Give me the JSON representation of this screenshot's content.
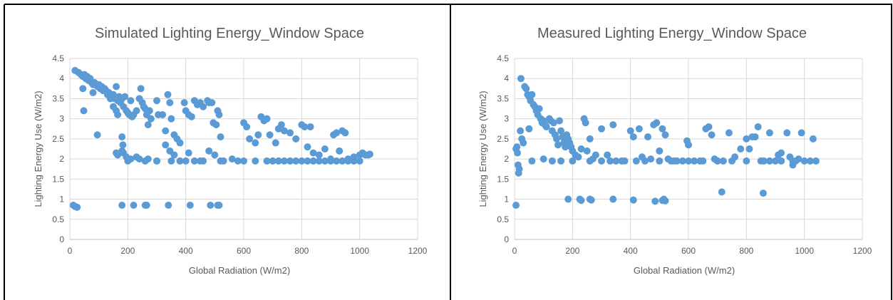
{
  "chart_data": [
    {
      "type": "scatter",
      "title": "Simulated Lighting Energy_Window Space",
      "xlabel": "Global Radiation (W/m2)",
      "ylabel": "Lighting Energy Use (W/m2)",
      "xlim": [
        0,
        1200
      ],
      "ylim": [
        0,
        4.5
      ],
      "x_ticks": [
        "0",
        "200",
        "400",
        "600",
        "800",
        "1000",
        "1200"
      ],
      "y_ticks": [
        "0",
        "0.5",
        "1",
        "1.5",
        "2",
        "2.5",
        "3",
        "3.5",
        "4",
        "4.5"
      ],
      "grid": true,
      "color": "#5b9bd5",
      "points": [
        [
          18,
          4.2
        ],
        [
          30,
          4.15
        ],
        [
          38,
          4.1
        ],
        [
          45,
          4.05
        ],
        [
          50,
          4.1
        ],
        [
          55,
          4.0
        ],
        [
          60,
          4.05
        ],
        [
          65,
          3.95
        ],
        [
          70,
          4.0
        ],
        [
          75,
          3.9
        ],
        [
          80,
          3.85
        ],
        [
          85,
          3.9
        ],
        [
          95,
          3.8
        ],
        [
          100,
          3.85
        ],
        [
          105,
          3.75
        ],
        [
          110,
          3.8
        ],
        [
          115,
          3.7
        ],
        [
          120,
          3.75
        ],
        [
          125,
          3.7
        ],
        [
          130,
          3.6
        ],
        [
          135,
          3.65
        ],
        [
          140,
          3.5
        ],
        [
          145,
          3.55
        ],
        [
          150,
          3.6
        ],
        [
          155,
          3.5
        ],
        [
          160,
          3.8
        ],
        [
          165,
          3.45
        ],
        [
          170,
          3.55
        ],
        [
          175,
          3.4
        ],
        [
          180,
          3.5
        ],
        [
          185,
          3.3
        ],
        [
          190,
          3.55
        ],
        [
          195,
          3.2
        ],
        [
          200,
          3.15
        ],
        [
          205,
          3.1
        ],
        [
          210,
          3.45
        ],
        [
          215,
          3.05
        ],
        [
          220,
          3.1
        ],
        [
          230,
          3.2
        ],
        [
          240,
          3.5
        ],
        [
          245,
          3.75
        ],
        [
          250,
          3.4
        ],
        [
          255,
          3.3
        ],
        [
          260,
          3.25
        ],
        [
          265,
          3.1
        ],
        [
          270,
          2.85
        ],
        [
          275,
          3.2
        ],
        [
          280,
          3.0
        ],
        [
          300,
          3.45
        ],
        [
          305,
          3.1
        ],
        [
          320,
          3.1
        ],
        [
          330,
          2.7
        ],
        [
          338,
          3.6
        ],
        [
          345,
          3.4
        ],
        [
          350,
          3.0
        ],
        [
          360,
          2.6
        ],
        [
          370,
          2.5
        ],
        [
          380,
          2.4
        ],
        [
          395,
          3.4
        ],
        [
          400,
          3.2
        ],
        [
          410,
          3.1
        ],
        [
          420,
          3.05
        ],
        [
          430,
          3.45
        ],
        [
          440,
          3.35
        ],
        [
          450,
          3.4
        ],
        [
          460,
          3.3
        ],
        [
          475,
          3.45
        ],
        [
          480,
          3.4
        ],
        [
          490,
          3.4
        ],
        [
          495,
          2.9
        ],
        [
          505,
          2.85
        ],
        [
          510,
          3.2
        ],
        [
          515,
          3.1
        ],
        [
          520,
          2.55
        ],
        [
          48,
          3.2
        ],
        [
          45,
          3.75
        ],
        [
          80,
          3.65
        ],
        [
          95,
          2.6
        ],
        [
          150,
          3.3
        ],
        [
          160,
          3.2
        ],
        [
          165,
          3.1
        ],
        [
          180,
          2.55
        ],
        [
          183,
          2.35
        ],
        [
          180,
          2.2
        ],
        [
          160,
          2.15
        ],
        [
          165,
          2.1
        ],
        [
          185,
          2.15
        ],
        [
          195,
          2.05
        ],
        [
          210,
          2.0
        ],
        [
          230,
          2.05
        ],
        [
          240,
          2.0
        ],
        [
          260,
          1.95
        ],
        [
          270,
          2.0
        ],
        [
          300,
          1.95
        ],
        [
          330,
          2.35
        ],
        [
          345,
          2.2
        ],
        [
          360,
          2.1
        ],
        [
          380,
          1.95
        ],
        [
          410,
          2.15
        ],
        [
          430,
          1.95
        ],
        [
          460,
          1.95
        ],
        [
          480,
          2.2
        ],
        [
          500,
          2.1
        ],
        [
          530,
          1.95
        ],
        [
          560,
          2.0
        ],
        [
          580,
          1.95
        ],
        [
          600,
          2.9
        ],
        [
          610,
          2.8
        ],
        [
          620,
          2.5
        ],
        [
          640,
          2.4
        ],
        [
          650,
          2.6
        ],
        [
          660,
          3.05
        ],
        [
          670,
          2.95
        ],
        [
          680,
          3.0
        ],
        [
          690,
          2.6
        ],
        [
          710,
          2.4
        ],
        [
          720,
          2.75
        ],
        [
          730,
          2.85
        ],
        [
          740,
          2.7
        ],
        [
          760,
          2.65
        ],
        [
          780,
          2.5
        ],
        [
          800,
          2.85
        ],
        [
          810,
          2.8
        ],
        [
          820,
          2.3
        ],
        [
          830,
          2.8
        ],
        [
          840,
          2.15
        ],
        [
          860,
          2.1
        ],
        [
          880,
          2.25
        ],
        [
          900,
          2.0
        ],
        [
          910,
          2.6
        ],
        [
          920,
          2.65
        ],
        [
          930,
          2.2
        ],
        [
          940,
          2.7
        ],
        [
          950,
          2.65
        ],
        [
          960,
          2.0
        ],
        [
          980,
          2.05
        ],
        [
          1000,
          2.1
        ],
        [
          1010,
          2.15
        ],
        [
          1020,
          2.1
        ],
        [
          1030,
          2.1
        ],
        [
          1035,
          2.12
        ],
        [
          200,
          1.95
        ],
        [
          300,
          1.95
        ],
        [
          350,
          1.95
        ],
        [
          400,
          1.95
        ],
        [
          450,
          1.95
        ],
        [
          520,
          1.95
        ],
        [
          600,
          1.95
        ],
        [
          640,
          1.95
        ],
        [
          680,
          1.95
        ],
        [
          700,
          1.95
        ],
        [
          720,
          1.95
        ],
        [
          740,
          1.95
        ],
        [
          760,
          1.95
        ],
        [
          780,
          1.95
        ],
        [
          800,
          1.95
        ],
        [
          820,
          1.95
        ],
        [
          840,
          1.95
        ],
        [
          860,
          1.95
        ],
        [
          880,
          1.95
        ],
        [
          900,
          1.95
        ],
        [
          920,
          1.95
        ],
        [
          940,
          1.95
        ],
        [
          960,
          1.95
        ],
        [
          980,
          1.95
        ],
        [
          1000,
          1.95
        ],
        [
          12,
          0.85
        ],
        [
          18,
          0.82
        ],
        [
          25,
          0.8
        ],
        [
          180,
          0.85
        ],
        [
          220,
          0.85
        ],
        [
          260,
          0.85
        ],
        [
          265,
          0.85
        ],
        [
          340,
          0.85
        ],
        [
          415,
          0.85
        ],
        [
          485,
          0.85
        ],
        [
          510,
          0.85
        ],
        [
          515,
          0.85
        ]
      ]
    },
    {
      "type": "scatter",
      "title": "Measured Lighting Energy_Window Space",
      "xlabel": "Global Radiation (W/m2)",
      "ylabel": "Lighting Energy Use (W/m2)",
      "xlim": [
        0,
        1200
      ],
      "ylim": [
        0,
        4.5
      ],
      "x_ticks": [
        "0",
        "200",
        "400",
        "600",
        "800",
        "1000",
        "1200"
      ],
      "y_ticks": [
        "0",
        "0.5",
        "1",
        "1.5",
        "2",
        "2.5",
        "3",
        "3.5",
        "4",
        "4.5"
      ],
      "grid": true,
      "color": "#5b9bd5",
      "points": [
        [
          5,
          2.25
        ],
        [
          8,
          2.3
        ],
        [
          10,
          2.15
        ],
        [
          12,
          1.85
        ],
        [
          14,
          1.65
        ],
        [
          16,
          1.75
        ],
        [
          20,
          2.7
        ],
        [
          25,
          2.5
        ],
        [
          30,
          2.4
        ],
        [
          22,
          4.0
        ],
        [
          35,
          3.8
        ],
        [
          40,
          3.75
        ],
        [
          45,
          3.6
        ],
        [
          50,
          3.55
        ],
        [
          55,
          3.45
        ],
        [
          60,
          3.6
        ],
        [
          65,
          3.35
        ],
        [
          70,
          3.3
        ],
        [
          75,
          3.2
        ],
        [
          80,
          3.1
        ],
        [
          85,
          3.25
        ],
        [
          90,
          3.0
        ],
        [
          95,
          2.9
        ],
        [
          100,
          2.95
        ],
        [
          105,
          2.85
        ],
        [
          110,
          2.8
        ],
        [
          120,
          3.0
        ],
        [
          125,
          2.95
        ],
        [
          130,
          2.7
        ],
        [
          135,
          2.9
        ],
        [
          140,
          2.6
        ],
        [
          145,
          2.5
        ],
        [
          150,
          2.35
        ],
        [
          155,
          2.95
        ],
        [
          160,
          2.7
        ],
        [
          165,
          2.55
        ],
        [
          170,
          2.4
        ],
        [
          175,
          2.3
        ],
        [
          180,
          2.6
        ],
        [
          185,
          2.5
        ],
        [
          190,
          2.4
        ],
        [
          195,
          2.3
        ],
        [
          200,
          2.2
        ],
        [
          210,
          2.1
        ],
        [
          220,
          2.05
        ],
        [
          230,
          2.25
        ],
        [
          240,
          3.0
        ],
        [
          245,
          2.9
        ],
        [
          250,
          2.2
        ],
        [
          260,
          2.5
        ],
        [
          270,
          2.0
        ],
        [
          280,
          2.1
        ],
        [
          300,
          2.75
        ],
        [
          320,
          2.1
        ],
        [
          340,
          2.85
        ],
        [
          350,
          1.95
        ],
        [
          370,
          1.95
        ],
        [
          400,
          2.7
        ],
        [
          410,
          2.55
        ],
        [
          420,
          1.95
        ],
        [
          430,
          2.75
        ],
        [
          440,
          2.05
        ],
        [
          460,
          2.55
        ],
        [
          470,
          2.0
        ],
        [
          480,
          2.85
        ],
        [
          490,
          2.9
        ],
        [
          500,
          2.2
        ],
        [
          510,
          2.75
        ],
        [
          520,
          2.6
        ],
        [
          530,
          2.0
        ],
        [
          540,
          1.95
        ],
        [
          560,
          1.95
        ],
        [
          580,
          1.95
        ],
        [
          595,
          2.45
        ],
        [
          600,
          2.35
        ],
        [
          620,
          1.95
        ],
        [
          640,
          1.95
        ],
        [
          660,
          2.75
        ],
        [
          670,
          2.8
        ],
        [
          680,
          2.6
        ],
        [
          690,
          2.0
        ],
        [
          700,
          1.95
        ],
        [
          720,
          1.95
        ],
        [
          740,
          2.65
        ],
        [
          760,
          2.05
        ],
        [
          780,
          2.25
        ],
        [
          800,
          2.5
        ],
        [
          810,
          2.25
        ],
        [
          820,
          2.55
        ],
        [
          830,
          2.55
        ],
        [
          840,
          2.8
        ],
        [
          860,
          1.95
        ],
        [
          880,
          2.65
        ],
        [
          900,
          1.95
        ],
        [
          910,
          2.1
        ],
        [
          920,
          2.15
        ],
        [
          940,
          2.65
        ],
        [
          950,
          2.05
        ],
        [
          960,
          1.85
        ],
        [
          970,
          1.95
        ],
        [
          980,
          2.0
        ],
        [
          990,
          2.65
        ],
        [
          1000,
          1.95
        ],
        [
          1020,
          1.95
        ],
        [
          1030,
          2.5
        ],
        [
          1040,
          1.95
        ],
        [
          50,
          2.75
        ],
        [
          60,
          1.95
        ],
        [
          100,
          2.0
        ],
        [
          130,
          1.95
        ],
        [
          160,
          1.95
        ],
        [
          200,
          1.95
        ],
        [
          260,
          1.95
        ],
        [
          300,
          1.95
        ],
        [
          330,
          1.95
        ],
        [
          380,
          1.95
        ],
        [
          450,
          1.95
        ],
        [
          500,
          1.95
        ],
        [
          550,
          1.95
        ],
        [
          600,
          1.95
        ],
        [
          650,
          1.95
        ],
        [
          700,
          1.95
        ],
        [
          750,
          1.95
        ],
        [
          800,
          1.95
        ],
        [
          850,
          1.95
        ],
        [
          880,
          1.95
        ],
        [
          920,
          1.95
        ],
        [
          960,
          1.95
        ],
        [
          5,
          0.85
        ],
        [
          185,
          1.0
        ],
        [
          225,
          1.0
        ],
        [
          230,
          0.97
        ],
        [
          260,
          1.0
        ],
        [
          265,
          0.98
        ],
        [
          340,
          1.0
        ],
        [
          410,
          0.98
        ],
        [
          485,
          0.95
        ],
        [
          510,
          0.97
        ],
        [
          515,
          1.0
        ],
        [
          520,
          0.96
        ],
        [
          715,
          1.18
        ],
        [
          858,
          1.15
        ]
      ]
    }
  ]
}
